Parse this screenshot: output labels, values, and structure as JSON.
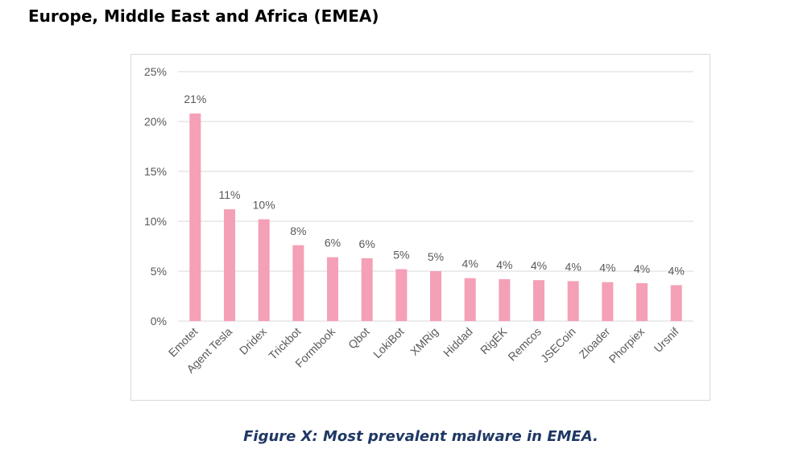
{
  "heading": "Europe, Middle East and Africa (EMEA)",
  "caption": "Figure X: Most prevalent malware in EMEA.",
  "chart_data": {
    "type": "bar",
    "title": "",
    "xlabel": "",
    "ylabel": "",
    "categories": [
      "Emotet",
      "Agent Tesla",
      "Dridex",
      "Trickbot",
      "Formbook",
      "Qbot",
      "LokiBot",
      "XMRig",
      "Hiddad",
      "RigEK",
      "Remcos",
      "JSECoin",
      "Zloader",
      "Phorpiex",
      "Ursnif"
    ],
    "values": [
      20.8,
      11.2,
      10.2,
      7.6,
      6.4,
      6.3,
      5.2,
      5.0,
      4.3,
      4.2,
      4.1,
      4.0,
      3.9,
      3.8,
      3.6
    ],
    "data_labels": [
      "21%",
      "11%",
      "10%",
      "8%",
      "6%",
      "6%",
      "5%",
      "5%",
      "4%",
      "4%",
      "4%",
      "4%",
      "4%",
      "4%",
      "4%"
    ],
    "ylim": [
      0,
      25
    ],
    "yticks": [
      0,
      5,
      10,
      15,
      20,
      25
    ],
    "ytick_labels": [
      "0%",
      "5%",
      "10%",
      "15%",
      "20%",
      "25%"
    ],
    "grid": true,
    "legend": "none",
    "bar_color": "#f4a0b6",
    "grid_color": "#d9d9d9",
    "text_color": "#595959"
  }
}
